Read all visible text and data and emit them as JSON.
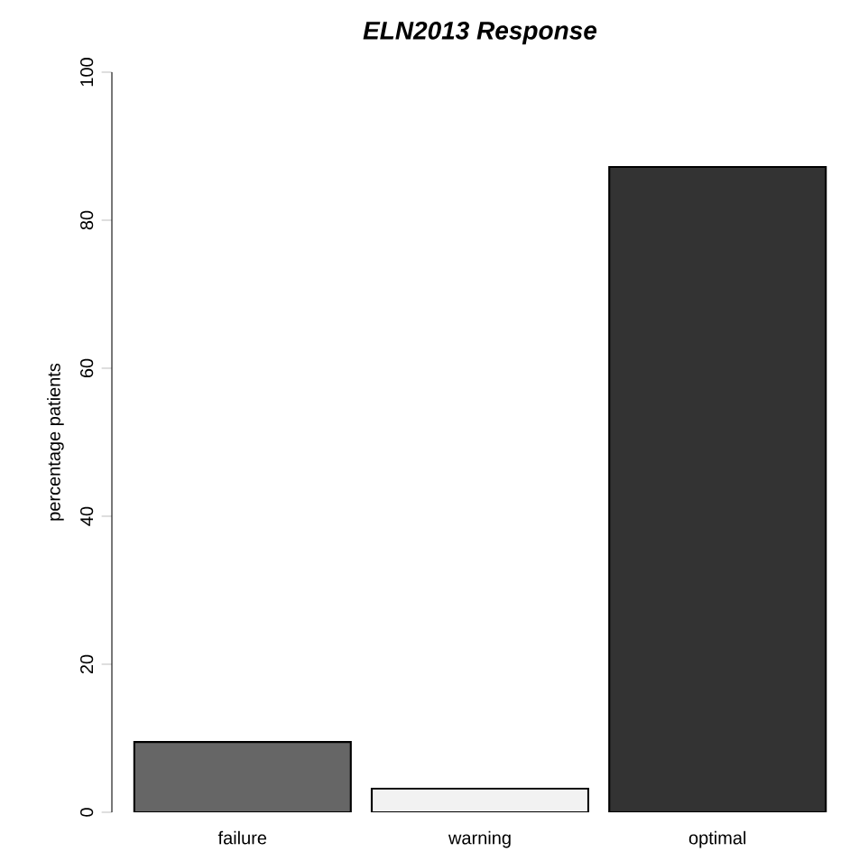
{
  "chart_data": {
    "type": "bar",
    "title": "ELN2013 Response",
    "ylabel": "percentage patients",
    "categories": [
      "failure",
      "warning",
      "optimal"
    ],
    "values": [
      9.5,
      3.2,
      87.2
    ],
    "colors": [
      "#666666",
      "#f2f2f2",
      "#333333"
    ],
    "ylim": [
      0,
      100
    ],
    "yticks": [
      0,
      20,
      40,
      60,
      80,
      100
    ]
  }
}
